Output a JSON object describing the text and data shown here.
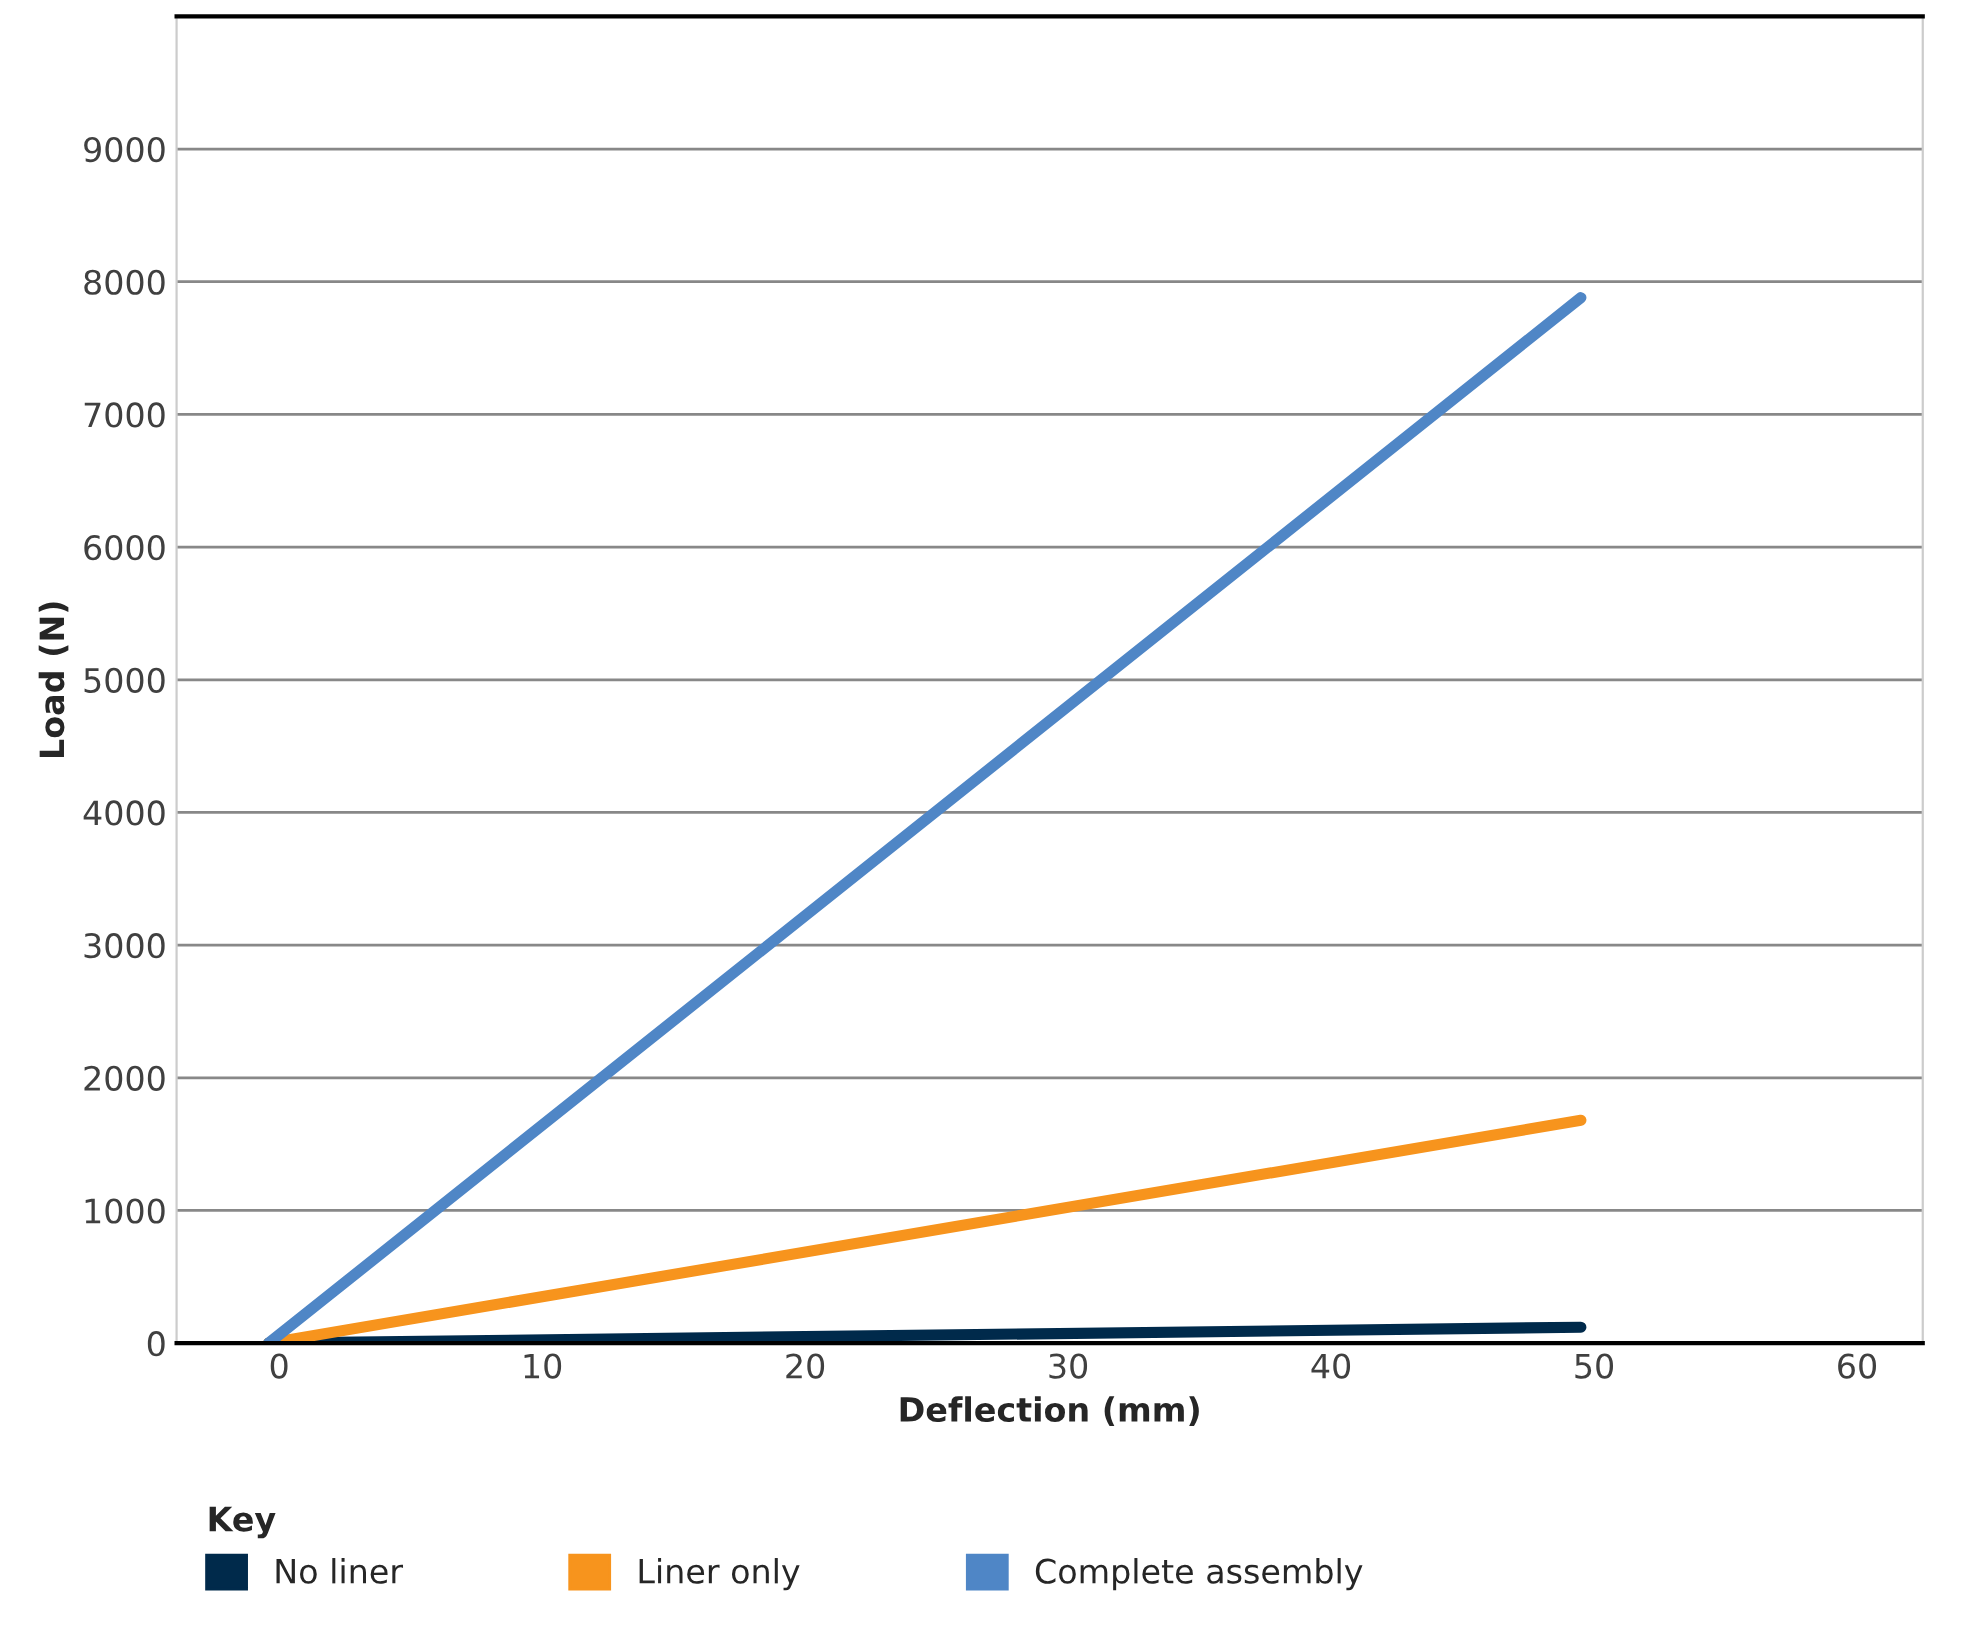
{
  "chart_data": {
    "type": "line",
    "xlabel": "Deflection (mm)",
    "ylabel": "Load (N)",
    "legend_title": "Key",
    "xlim": [
      -3.9,
      62.5
    ],
    "xticks": [
      0,
      10,
      20,
      30,
      40,
      50,
      60
    ],
    "ylim": [
      0,
      10000
    ],
    "yticks": [
      0,
      1000,
      2000,
      3000,
      4000,
      5000,
      6000,
      7000,
      8000,
      9000
    ],
    "x": [
      -0.4,
      49.5
    ],
    "grid": "y",
    "legend": "bottom",
    "marker": "none",
    "line_style": "solid",
    "series": [
      {
        "name": "No liner",
        "color": "#002a4b",
        "values": [
          0,
          120
        ]
      },
      {
        "name": "Liner only",
        "color": "#f7941d",
        "values": [
          0,
          1680
        ]
      },
      {
        "name": "Complete assembly",
        "color": "#4f86c6",
        "values": [
          0,
          7880
        ]
      }
    ]
  }
}
